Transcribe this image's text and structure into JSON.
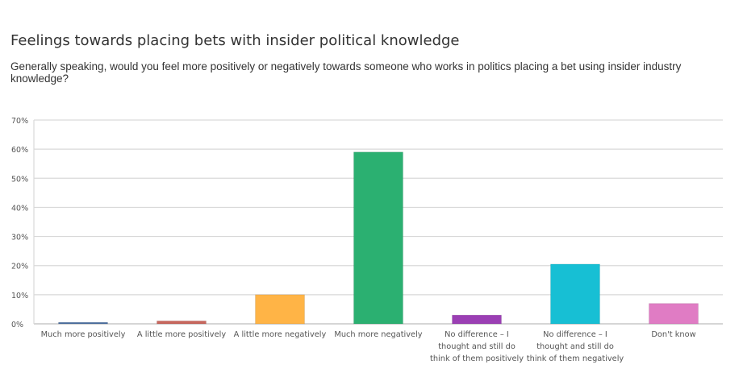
{
  "title": "Feelings towards placing bets with insider political knowledge",
  "subtitle": "Generally speaking, would you feel more positively or negatively towards someone who works in politics placing a bet using insider industry knowledge?",
  "chart_data": {
    "type": "bar",
    "categories": [
      [
        "Much more positively"
      ],
      [
        "A little more positively"
      ],
      [
        "A little more negatively"
      ],
      [
        "Much more negatively"
      ],
      [
        "No difference – I",
        "thought and still do",
        "think of them positively"
      ],
      [
        "No difference – I",
        "thought and still do",
        "think of them negatively"
      ],
      [
        "Don't know"
      ]
    ],
    "values": [
      0.5,
      1,
      10,
      59,
      3,
      20.5,
      7
    ],
    "colors": [
      "#4a6fa0",
      "#c8675d",
      "#ffb446",
      "#2bb071",
      "#9b3fb4",
      "#17bfd4",
      "#e07cc4"
    ],
    "y_ticks": [
      "0%",
      "10%",
      "20%",
      "30%",
      "40%",
      "50%",
      "60%",
      "70%"
    ],
    "ylim": [
      0,
      70
    ],
    "grid": true,
    "xlabel": "",
    "ylabel": ""
  }
}
